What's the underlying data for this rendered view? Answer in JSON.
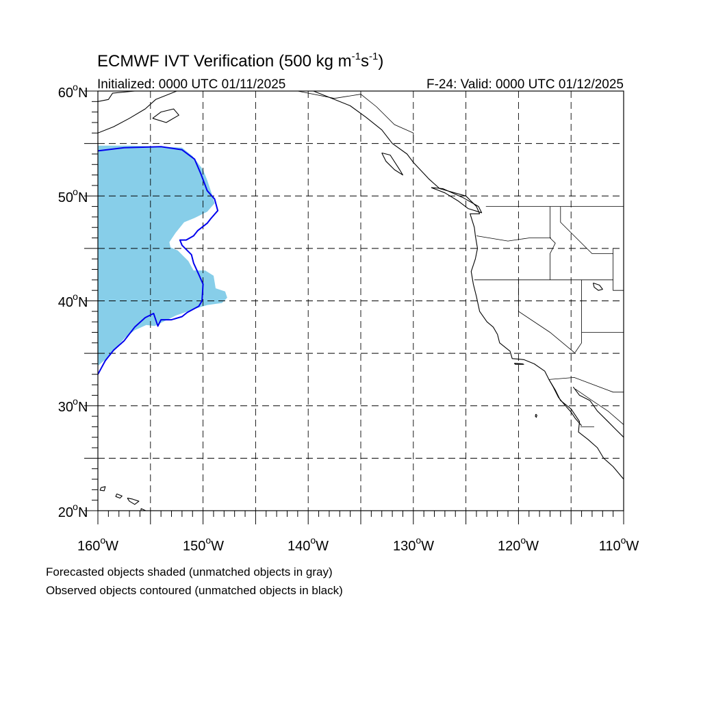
{
  "title": {
    "main": "ECMWF IVT Verification (500 kg m",
    "sup1": "-1",
    "mid": "s",
    "sup2": "-1",
    "close": ")"
  },
  "subtitle_left": "Initialized: 0000 UTC 01/11/2025",
  "subtitle_right": "F-24: Valid: 0000 UTC 01/12/2025",
  "lat_labels": [
    {
      "deg": "60",
      "hemi": "N"
    },
    {
      "deg": "50",
      "hemi": "N"
    },
    {
      "deg": "40",
      "hemi": "N"
    },
    {
      "deg": "30",
      "hemi": "N"
    },
    {
      "deg": "20",
      "hemi": "N"
    }
  ],
  "lon_labels": [
    {
      "deg": "160",
      "hemi": "W"
    },
    {
      "deg": "150",
      "hemi": "W"
    },
    {
      "deg": "140",
      "hemi": "W"
    },
    {
      "deg": "130",
      "hemi": "W"
    },
    {
      "deg": "120",
      "hemi": "W"
    },
    {
      "deg": "110",
      "hemi": "W"
    }
  ],
  "footnote_1": "Forecasted objects shaded (unmatched objects in gray)",
  "footnote_2": "Observed objects contoured (unmatched objects in black)",
  "colors": {
    "forecast_fill": "#87cee9",
    "observed_contour": "#0000ee",
    "coastline": "#000000",
    "grid": "#000000"
  },
  "chart_data": {
    "type": "map",
    "projection": "cylindrical-equidistant",
    "lon_range": [
      -160,
      -110
    ],
    "lat_range": [
      20,
      60
    ],
    "grid_lon_step": 5,
    "grid_lat_step": 5,
    "grid": "dashed",
    "forecast_object": {
      "lonlat": [
        [
          -160,
          54.8
        ],
        [
          -157,
          54.8
        ],
        [
          -154,
          54.7
        ],
        [
          -152,
          54.6
        ],
        [
          -151,
          53.8
        ],
        [
          -150,
          52.5
        ],
        [
          -149.6,
          51.5
        ],
        [
          -149.2,
          50.3
        ],
        [
          -148.9,
          49.3
        ],
        [
          -149.6,
          48.5
        ],
        [
          -150.8,
          47.9
        ],
        [
          -151.8,
          47.5
        ],
        [
          -152.6,
          46.5
        ],
        [
          -153.2,
          45.6
        ],
        [
          -153.1,
          45.1
        ],
        [
          -152.4,
          44.8
        ],
        [
          -151.9,
          44.3
        ],
        [
          -151.4,
          43.8
        ],
        [
          -150.9,
          42.9
        ],
        [
          -149.8,
          42.9
        ],
        [
          -149.0,
          42.4
        ],
        [
          -148.8,
          41.2
        ],
        [
          -147.9,
          40.9
        ],
        [
          -147.7,
          40.3
        ],
        [
          -148.2,
          39.8
        ],
        [
          -149.6,
          39.6
        ],
        [
          -150.6,
          39.3
        ],
        [
          -152.6,
          38.6
        ],
        [
          -153.6,
          38.1
        ],
        [
          -154.6,
          37.6
        ],
        [
          -155.4,
          37.7
        ],
        [
          -156.5,
          37.2
        ],
        [
          -157.4,
          36.5
        ],
        [
          -158.4,
          35.4
        ],
        [
          -159.3,
          34.4
        ],
        [
          -160,
          33.8
        ]
      ]
    },
    "observed_object": {
      "lonlat": [
        [
          -160,
          54.3
        ],
        [
          -157.5,
          54.6
        ],
        [
          -154,
          54.7
        ],
        [
          -152,
          54.4
        ],
        [
          -150.8,
          53.5
        ],
        [
          -150.2,
          52.1
        ],
        [
          -149.6,
          50.5
        ],
        [
          -148.9,
          49.7
        ],
        [
          -148.6,
          48.6
        ],
        [
          -149.3,
          47.8
        ],
        [
          -149.6,
          47.4
        ],
        [
          -150.5,
          46.7
        ],
        [
          -150.9,
          46.2
        ],
        [
          -151.6,
          45.8
        ],
        [
          -152.2,
          45.8
        ],
        [
          -152.0,
          45.3
        ],
        [
          -151.1,
          44.4
        ],
        [
          -150.9,
          43.6
        ],
        [
          -150.4,
          42.5
        ],
        [
          -150.0,
          41.6
        ],
        [
          -150.1,
          40.0
        ],
        [
          -150.4,
          39.5
        ],
        [
          -151.5,
          38.9
        ],
        [
          -152.0,
          38.5
        ],
        [
          -153.0,
          38.2
        ],
        [
          -154.0,
          38.2
        ],
        [
          -154.3,
          37.6
        ],
        [
          -154.7,
          38.8
        ],
        [
          -155.5,
          38.4
        ],
        [
          -156.5,
          37.5
        ],
        [
          -157.5,
          36.2
        ],
        [
          -158.5,
          35.3
        ],
        [
          -159.3,
          34.3
        ],
        [
          -160,
          33.0
        ]
      ]
    },
    "coastlines": [
      {
        "id": "north-america-coast",
        "lonlat": [
          [
            -139.5,
            60
          ],
          [
            -137.5,
            59.2
          ],
          [
            -136,
            58.6
          ],
          [
            -134.5,
            57.5
          ],
          [
            -133,
            56.3
          ],
          [
            -132,
            55
          ],
          [
            -130.6,
            54
          ],
          [
            -130,
            53.2
          ],
          [
            -128.5,
            51.6
          ],
          [
            -127.5,
            50.7
          ],
          [
            -125,
            50
          ],
          [
            -124,
            49
          ],
          [
            -123.7,
            48.3
          ],
          [
            -124.6,
            48.3
          ],
          [
            -124.2,
            47
          ],
          [
            -124.1,
            46.2
          ],
          [
            -123.9,
            45
          ],
          [
            -124.1,
            44
          ],
          [
            -124.5,
            42.8
          ],
          [
            -124.3,
            41.6
          ],
          [
            -124,
            40.4
          ],
          [
            -123.7,
            39
          ],
          [
            -123,
            38
          ],
          [
            -122.4,
            37.5
          ],
          [
            -122,
            36.8
          ],
          [
            -121.8,
            36
          ],
          [
            -120.8,
            35.2
          ],
          [
            -120.6,
            34.5
          ],
          [
            -119.5,
            34.4
          ],
          [
            -118.5,
            34
          ],
          [
            -117.5,
            33.3
          ],
          [
            -117.1,
            32.5
          ],
          [
            -116.5,
            31.5
          ],
          [
            -116,
            30.5
          ],
          [
            -115,
            29.7
          ],
          [
            -114.2,
            28.5
          ],
          [
            -114.3,
            27.5
          ],
          [
            -113.4,
            26.8
          ],
          [
            -112.5,
            26
          ],
          [
            -111.9,
            25
          ],
          [
            -111.0,
            24.2
          ],
          [
            -110,
            23
          ]
        ]
      },
      {
        "id": "vancouver-island",
        "lonlat": [
          [
            -128.3,
            50.8
          ],
          [
            -127,
            50.3
          ],
          [
            -125.7,
            49.5
          ],
          [
            -124.8,
            48.8
          ],
          [
            -123.5,
            48.4
          ],
          [
            -123.8,
            49.0
          ],
          [
            -125.2,
            49.8
          ],
          [
            -127.2,
            50.7
          ],
          [
            -128.3,
            50.8
          ]
        ]
      },
      {
        "id": "haida-gwaii",
        "lonlat": [
          [
            -133.0,
            54.1
          ],
          [
            -132.2,
            53.9
          ],
          [
            -131.3,
            52.5
          ],
          [
            -131.0,
            52.0
          ],
          [
            -131.8,
            52.5
          ],
          [
            -132.6,
            53.3
          ],
          [
            -133.0,
            54.1
          ]
        ]
      },
      {
        "id": "gulf-of-california-east",
        "lonlat": [
          [
            -114.8,
            31.8
          ],
          [
            -114.2,
            31
          ],
          [
            -113.2,
            30.5
          ],
          [
            -112.5,
            29.5
          ],
          [
            -111.5,
            28.5
          ],
          [
            -110.8,
            27.8
          ],
          [
            -110,
            27
          ]
        ]
      },
      {
        "id": "baja-west-coast-detail",
        "lonlat": [
          [
            -117.1,
            32.5
          ],
          [
            -116.7,
            31.8
          ],
          [
            -116.2,
            30.8
          ],
          [
            -115.7,
            30.2
          ],
          [
            -115.0,
            29.4
          ],
          [
            -114.6,
            28.8
          ],
          [
            -114.0,
            28.1
          ]
        ]
      },
      {
        "id": "alaska-peninsula",
        "lonlat": [
          [
            -161,
            55.6
          ],
          [
            -160,
            56.0
          ],
          [
            -158.5,
            56.6
          ],
          [
            -157,
            57.4
          ],
          [
            -155.5,
            58.3
          ],
          [
            -154.5,
            59.2
          ],
          [
            -152.5,
            60
          ]
        ]
      },
      {
        "id": "kodiak-island",
        "lonlat": [
          [
            -154.8,
            57.4
          ],
          [
            -153.5,
            57.0
          ],
          [
            -152.3,
            57.7
          ],
          [
            -152.8,
            58.3
          ],
          [
            -154.0,
            58.0
          ],
          [
            -154.8,
            57.4
          ]
        ]
      },
      {
        "id": "alaska-upper-left",
        "lonlat": [
          [
            -160,
            59.0
          ],
          [
            -159.0,
            59.2
          ],
          [
            -158.6,
            59.8
          ],
          [
            -157.5,
            59.9
          ],
          [
            -156.5,
            60
          ]
        ]
      },
      {
        "id": "hawaii-kauai",
        "lonlat": [
          [
            -159.7,
            22.2
          ],
          [
            -159.3,
            22.3
          ],
          [
            -159.4,
            21.9
          ],
          [
            -159.8,
            21.95
          ],
          [
            -159.7,
            22.2
          ]
        ]
      },
      {
        "id": "hawaii-oahu",
        "lonlat": [
          [
            -158.2,
            21.6
          ],
          [
            -157.7,
            21.4
          ],
          [
            -157.9,
            21.2
          ],
          [
            -158.3,
            21.35
          ],
          [
            -158.2,
            21.6
          ]
        ]
      },
      {
        "id": "hawaii-molokai-maui",
        "lonlat": [
          [
            -157.2,
            21.2
          ],
          [
            -156.7,
            21.1
          ],
          [
            -156.1,
            20.9
          ],
          [
            -156.5,
            20.6
          ],
          [
            -157.0,
            20.9
          ],
          [
            -157.2,
            21.2
          ]
        ]
      },
      {
        "id": "hawaii-big-island",
        "lonlat": [
          [
            -155.9,
            20.2
          ],
          [
            -155.0,
            19.8
          ],
          [
            -154.9,
            19.5
          ],
          [
            -155.3,
            19.0
          ],
          [
            -155.9,
            19.6
          ],
          [
            -155.9,
            20.2
          ]
        ]
      },
      {
        "id": "channel-islands",
        "lonlat": [
          [
            -120.4,
            34.05
          ],
          [
            -119.6,
            34.0
          ],
          [
            -119.5,
            33.95
          ],
          [
            -120.3,
            33.95
          ],
          [
            -120.4,
            34.05
          ]
        ]
      },
      {
        "id": "isla-guadalupe",
        "lonlat": [
          [
            -118.35,
            29.2
          ],
          [
            -118.25,
            29.1
          ],
          [
            -118.3,
            28.9
          ],
          [
            -118.4,
            29.0
          ],
          [
            -118.35,
            29.2
          ]
        ]
      },
      {
        "id": "great-salt-lake",
        "lonlat": [
          [
            -112.9,
            41.7
          ],
          [
            -112.3,
            41.5
          ],
          [
            -112.0,
            41.1
          ],
          [
            -112.4,
            41.0
          ],
          [
            -112.8,
            41.3
          ],
          [
            -112.9,
            41.7
          ]
        ]
      }
    ],
    "boundaries": [
      {
        "id": "us-canada-border",
        "lonlat": [
          [
            -123.1,
            49
          ],
          [
            -110,
            49
          ]
        ]
      },
      {
        "id": "alaska-bc-border",
        "lonlat": [
          [
            -141,
            60
          ],
          [
            -137.5,
            59.3
          ],
          [
            -135,
            59.7
          ],
          [
            -133.5,
            58.5
          ],
          [
            -131.8,
            56.8
          ],
          [
            -130,
            56
          ],
          [
            -130,
            55
          ]
        ]
      },
      {
        "id": "wa-or-border",
        "lonlat": [
          [
            -124,
            46.2
          ],
          [
            -121,
            45.7
          ],
          [
            -119,
            46
          ],
          [
            -116.9,
            46
          ]
        ]
      },
      {
        "id": "id-west-border",
        "lonlat": [
          [
            -117,
            49
          ],
          [
            -117,
            46
          ],
          [
            -116.5,
            45.5
          ],
          [
            -117,
            44.5
          ],
          [
            -117,
            42
          ]
        ]
      },
      {
        "id": "or-ca-nv-42n",
        "lonlat": [
          [
            -124.2,
            42
          ],
          [
            -111,
            42
          ]
        ]
      },
      {
        "id": "ca-nv-border",
        "lonlat": [
          [
            -120,
            42
          ],
          [
            -120,
            39
          ],
          [
            -117,
            37
          ],
          [
            -114.6,
            35
          ]
        ]
      },
      {
        "id": "nv-east-border",
        "lonlat": [
          [
            -114,
            42
          ],
          [
            -114,
            36
          ],
          [
            -114.6,
            35.1
          ]
        ]
      },
      {
        "id": "ut-east-border",
        "lonlat": [
          [
            -109,
            41
          ],
          [
            -111,
            41
          ],
          [
            -111,
            45
          ]
        ]
      },
      {
        "id": "mt-id-border",
        "lonlat": [
          [
            -116,
            49
          ],
          [
            -116,
            47.5
          ],
          [
            -114.5,
            46
          ],
          [
            -113,
            44.5
          ],
          [
            -111,
            44.5
          ]
        ]
      },
      {
        "id": "az-nm-line",
        "lonlat": [
          [
            -114,
            37
          ],
          [
            -110,
            37
          ]
        ]
      },
      {
        "id": "us-mexico-border",
        "lonlat": [
          [
            -117.1,
            32.5
          ],
          [
            -114.7,
            32.7
          ],
          [
            -111,
            31.3
          ],
          [
            -110,
            31.3
          ]
        ]
      },
      {
        "id": "mexico-state-line",
        "lonlat": [
          [
            -114.6,
            31.6
          ],
          [
            -113,
            30.5
          ],
          [
            -111.5,
            29.5
          ],
          [
            -110,
            28.2
          ]
        ]
      },
      {
        "id": "baja-sur-border",
        "lonlat": [
          [
            -114.1,
            28
          ],
          [
            -112.8,
            28
          ]
        ]
      }
    ]
  }
}
